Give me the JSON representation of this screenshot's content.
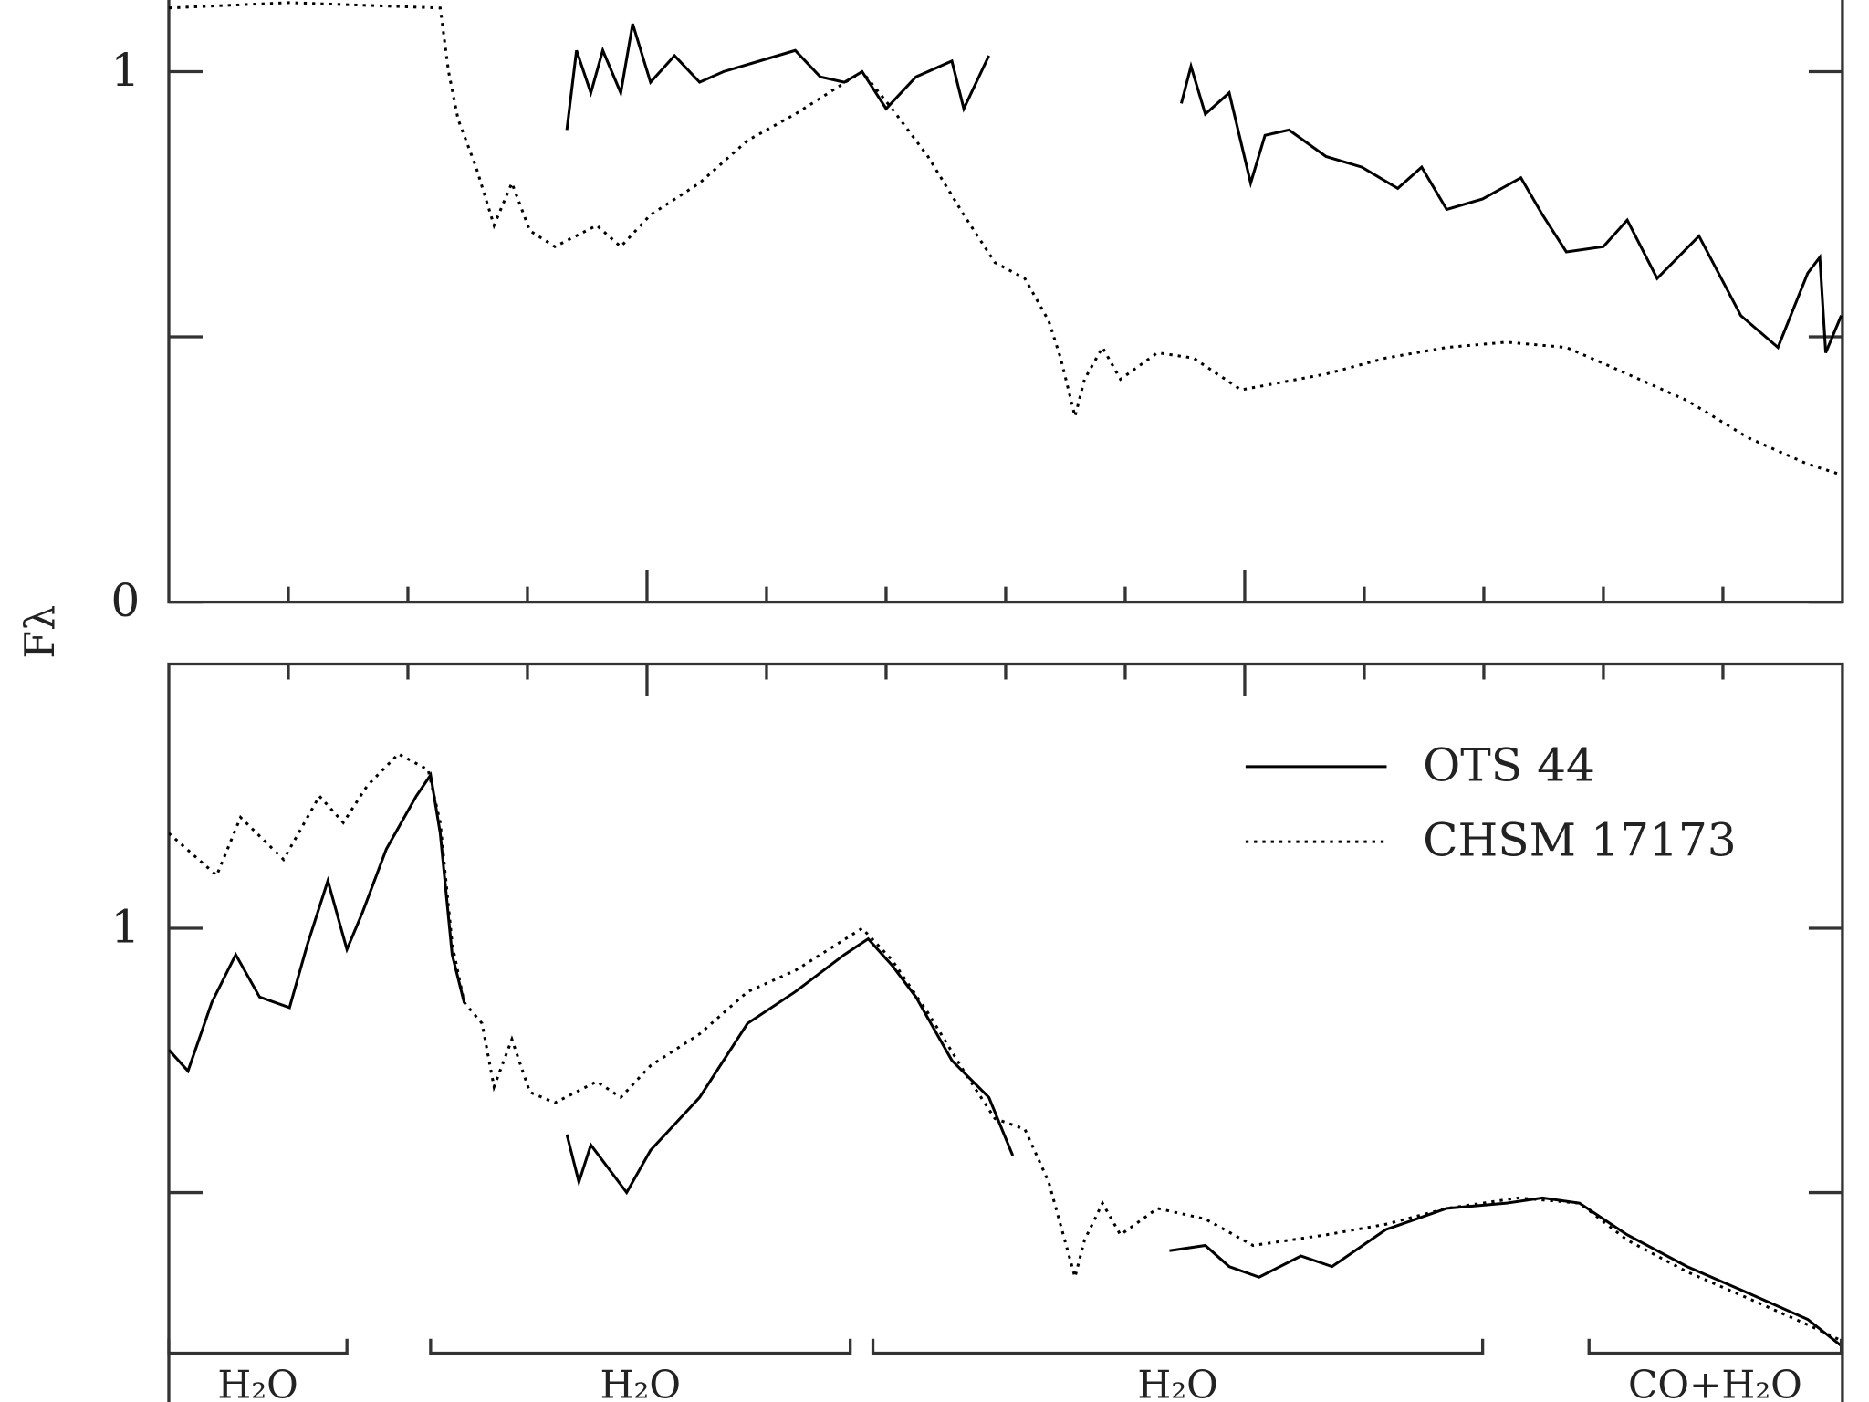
{
  "chart_data": [
    {
      "type": "line",
      "y_label": "Fλ",
      "xlim": [
        1.1,
        2.5
      ],
      "xticks": [
        1.5,
        2
      ],
      "minor_xticks": [
        1.2,
        1.3,
        1.4,
        1.6,
        1.7,
        1.8,
        1.9,
        2.1,
        2.2,
        2.3,
        2.4
      ],
      "ylim": [
        0,
        1.135
      ],
      "yticks": [
        0,
        1
      ],
      "minor_yticks": [
        0.5
      ],
      "series": [
        {
          "color": "#000000",
          "style": "dotted",
          "x": [
            1.1,
            1.201,
            1.327,
            1.334,
            1.342,
            1.357,
            1.372,
            1.387,
            1.402,
            1.423,
            1.458,
            1.478,
            1.503,
            1.544,
            1.584,
            1.624,
            1.68,
            1.705,
            1.735,
            1.765,
            1.791,
            1.816,
            1.836,
            1.846,
            1.858,
            1.866,
            1.881,
            1.896,
            1.927,
            1.957,
            1.997,
            2.068,
            2.118,
            2.169,
            2.219,
            2.269,
            2.3,
            2.37,
            2.421,
            2.471,
            2.499
          ],
          "values": [
            1.12,
            1.13,
            1.12,
            1.0,
            0.91,
            0.82,
            0.71,
            0.79,
            0.7,
            0.67,
            0.71,
            0.67,
            0.73,
            0.79,
            0.87,
            0.92,
            1.0,
            0.93,
            0.84,
            0.73,
            0.64,
            0.61,
            0.53,
            0.46,
            0.35,
            0.42,
            0.48,
            0.42,
            0.47,
            0.46,
            0.4,
            0.43,
            0.46,
            0.48,
            0.49,
            0.48,
            0.45,
            0.38,
            0.31,
            0.26,
            0.24
          ]
        },
        {
          "color": "#000000",
          "style": "solid",
          "x": [
            1.433,
            1.441,
            1.453,
            1.463,
            1.478,
            1.488,
            1.503,
            1.523,
            1.544,
            1.564,
            1.594,
            1.624,
            1.645,
            1.665,
            1.68,
            1.7,
            1.725,
            1.755,
            1.765,
            1.786,
            null,
            1.947,
            1.955,
            1.967,
            1.987,
            2.005,
            2.017,
            2.037,
            2.068,
            2.098,
            2.128,
            2.148,
            2.169,
            2.199,
            2.231,
            2.249,
            2.269,
            2.3,
            2.32,
            2.345,
            2.38,
            2.415,
            2.446,
            2.471,
            2.481,
            2.486,
            2.499
          ],
          "values": [
            0.89,
            1.04,
            0.96,
            1.04,
            0.96,
            1.09,
            0.98,
            1.03,
            0.98,
            1.0,
            1.02,
            1.04,
            0.99,
            0.98,
            1.0,
            0.93,
            0.99,
            1.02,
            0.93,
            1.03,
            null,
            0.94,
            1.01,
            0.92,
            0.96,
            0.79,
            0.88,
            0.89,
            0.84,
            0.82,
            0.78,
            0.82,
            0.74,
            0.76,
            0.8,
            0.73,
            0.66,
            0.67,
            0.72,
            0.61,
            0.69,
            0.54,
            0.48,
            0.62,
            0.65,
            0.47,
            0.54
          ]
        }
      ]
    },
    {
      "type": "line",
      "legend": "upper right",
      "xlim": [
        1.1,
        2.5
      ],
      "xticks": [
        1.5,
        2
      ],
      "minor_xticks": [
        1.2,
        1.3,
        1.4,
        1.6,
        1.7,
        1.8,
        1.9,
        2.1,
        2.2,
        2.3,
        2.4
      ],
      "ylim": [
        0,
        1.5
      ],
      "yticks": [
        1
      ],
      "minor_yticks": [
        0.5
      ],
      "series": [
        {
          "name": "OTS 44",
          "color": "#000000",
          "style": "solid",
          "x": [
            1.1,
            1.116,
            1.136,
            1.156,
            1.176,
            1.201,
            1.216,
            1.233,
            1.249,
            1.262,
            1.282,
            1.307,
            1.319,
            1.327,
            1.337,
            1.347,
            null,
            1.433,
            1.443,
            1.453,
            1.483,
            1.503,
            1.544,
            1.584,
            1.624,
            1.665,
            1.685,
            1.705,
            1.725,
            1.755,
            1.786,
            1.806,
            null,
            1.937,
            1.967,
            1.987,
            2.012,
            2.047,
            2.073,
            2.118,
            2.169,
            2.219,
            2.249,
            2.28,
            2.32,
            2.37,
            2.421,
            2.471,
            2.499
          ],
          "values": [
            0.77,
            0.73,
            0.86,
            0.95,
            0.87,
            0.85,
            0.97,
            1.09,
            0.96,
            1.03,
            1.15,
            1.25,
            1.29,
            1.18,
            0.95,
            0.86,
            null,
            0.61,
            0.52,
            0.59,
            0.5,
            0.58,
            0.68,
            0.82,
            0.88,
            0.95,
            0.98,
            0.93,
            0.87,
            0.75,
            0.68,
            0.57,
            null,
            0.39,
            0.4,
            0.36,
            0.34,
            0.38,
            0.36,
            0.43,
            0.47,
            0.48,
            0.49,
            0.48,
            0.42,
            0.36,
            0.31,
            0.26,
            0.21
          ]
        },
        {
          "name": "CHSM 17173",
          "color": "#000000",
          "style": "dotted",
          "x": [
            1.1,
            1.12,
            1.14,
            1.16,
            1.196,
            1.226,
            1.246,
            1.266,
            1.292,
            1.317,
            1.327,
            1.337,
            1.347,
            1.362,
            1.372,
            1.387,
            1.402,
            1.423,
            1.458,
            1.478,
            1.503,
            1.544,
            1.584,
            1.624,
            1.68,
            1.705,
            1.735,
            1.765,
            1.791,
            1.816,
            1.836,
            1.858,
            1.866,
            1.881,
            1.896,
            1.927,
            1.967,
            2.007,
            2.068,
            2.118,
            2.169,
            2.229,
            2.28,
            2.32,
            2.37,
            2.421,
            2.471,
            2.499
          ],
          "values": [
            1.18,
            1.14,
            1.1,
            1.21,
            1.13,
            1.25,
            1.2,
            1.27,
            1.33,
            1.3,
            1.2,
            0.97,
            0.86,
            0.82,
            0.7,
            0.79,
            0.69,
            0.67,
            0.71,
            0.68,
            0.74,
            0.8,
            0.88,
            0.92,
            1.0,
            0.94,
            0.84,
            0.73,
            0.64,
            0.62,
            0.52,
            0.34,
            0.41,
            0.48,
            0.42,
            0.47,
            0.45,
            0.4,
            0.42,
            0.44,
            0.47,
            0.49,
            0.48,
            0.41,
            0.35,
            0.3,
            0.25,
            0.22
          ]
        }
      ],
      "bands": [
        {
          "label": "H₂O",
          "x0": 1.1,
          "x1": 1.249
        },
        {
          "label": "H₂O",
          "x0": 1.319,
          "x1": 1.67
        },
        {
          "label": "H₂O",
          "x0": 1.689,
          "x1": 2.199
        },
        {
          "label": "CO+H₂O",
          "x0": 2.288,
          "x1": 2.499
        }
      ]
    }
  ]
}
